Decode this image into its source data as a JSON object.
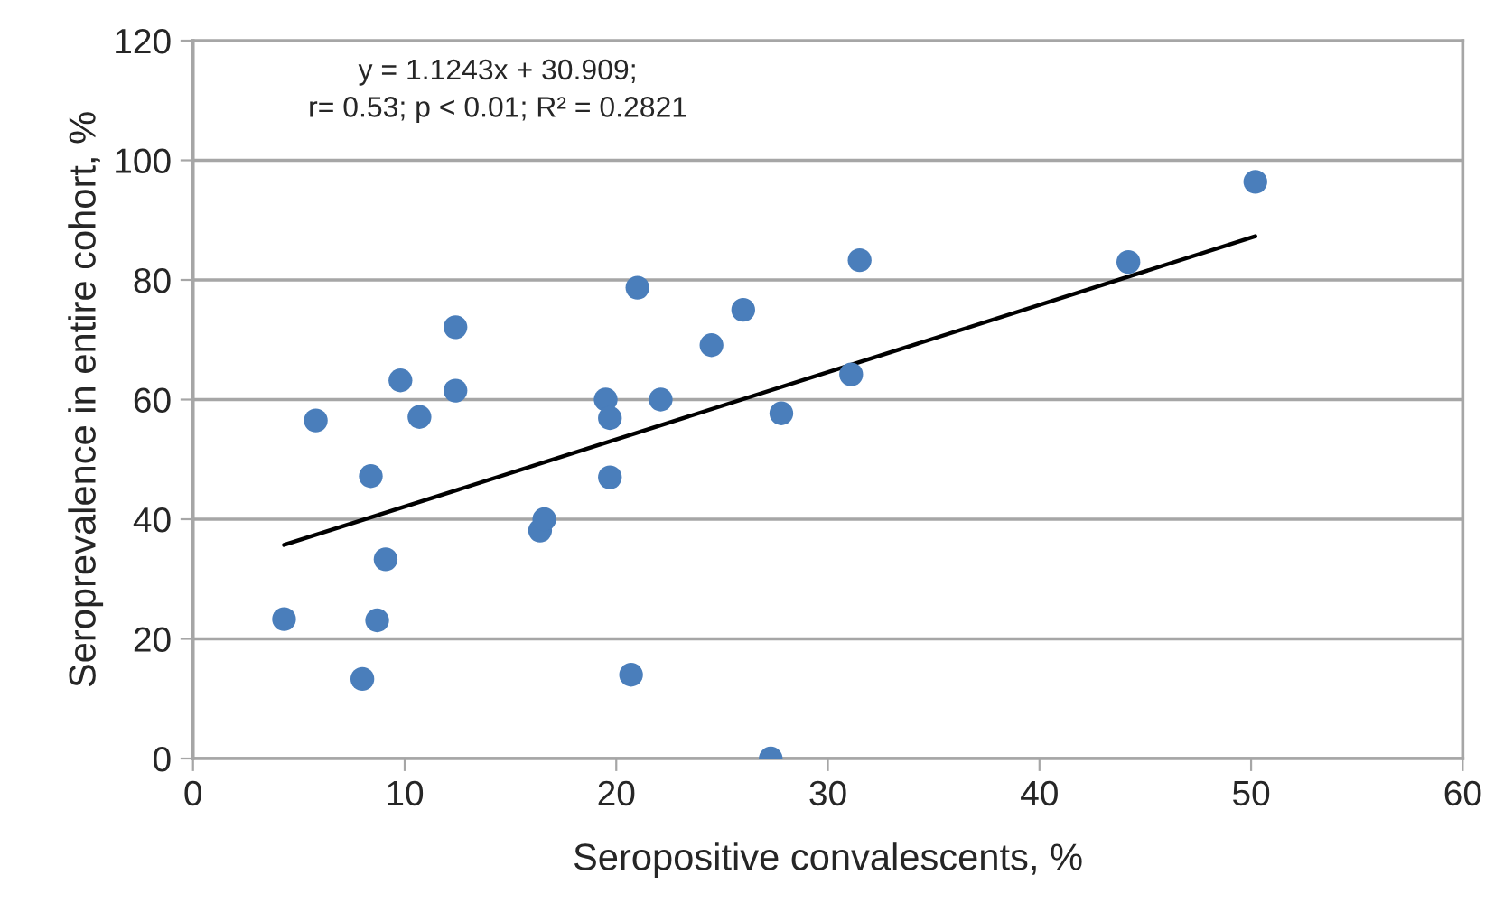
{
  "chart_data": {
    "type": "scatter",
    "xlabel": "Seropositive convalescents, %",
    "ylabel": "Seroprevalence in entire cohort, %",
    "xlim": [
      0,
      60
    ],
    "xticks": [
      0,
      10,
      20,
      30,
      40,
      50,
      60
    ],
    "ylim": [
      0,
      120
    ],
    "yticks": [
      0,
      20,
      40,
      60,
      80,
      100,
      120
    ],
    "grid": "y",
    "series": [
      {
        "marker": "circle",
        "color": "#4a7ebb",
        "x": [
          4.3,
          5.8,
          8.0,
          8.4,
          8.7,
          9.1,
          9.8,
          10.7,
          12.4,
          12.4,
          16.4,
          16.6,
          19.5,
          19.7,
          19.7,
          20.7,
          21.0,
          22.1,
          24.5,
          26.0,
          27.3,
          27.8,
          31.1,
          31.5,
          44.2,
          50.2
        ],
        "values": [
          23.3,
          56.5,
          13.3,
          47.2,
          23.1,
          33.3,
          63.2,
          57.1,
          72.1,
          61.5,
          38.1,
          40.0,
          60.0,
          56.9,
          47.0,
          14.0,
          78.7,
          60.0,
          69.1,
          75.0,
          0,
          57.7,
          64.2,
          83.3,
          83.0,
          96.4
        ]
      },
      {
        "type": "line",
        "color": "#000000",
        "x": [
          4.3,
          50.2
        ],
        "values": [
          35.7,
          87.3
        ]
      }
    ],
    "annotations": [
      "y = 1.1243x + 30.909;\nr= 0.53; p < 0.01; R² = 0.2821"
    ]
  }
}
